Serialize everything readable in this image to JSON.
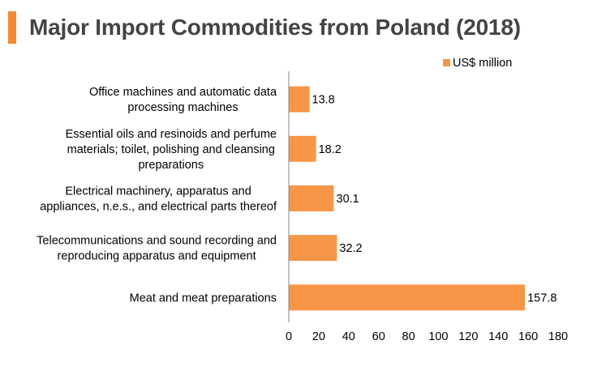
{
  "chart_data": {
    "type": "bar",
    "orientation": "horizontal",
    "title": "Major Import Commodities from Poland (2018)",
    "categories": [
      [
        "Office machines and automatic data",
        "processing machines"
      ],
      [
        "Essential oils and resinoids and perfume",
        "materials; toilet, polishing and cleansing",
        "preparations"
      ],
      [
        "Electrical machinery, apparatus and",
        "appliances, n.e.s., and electrical parts thereof"
      ],
      [
        "Telecommunications and sound recording and",
        "reproducing apparatus and equipment"
      ],
      [
        "Meat and meat preparations"
      ]
    ],
    "series": [
      {
        "name": "US$ million",
        "values": [
          13.8,
          18.2,
          30.1,
          32.2,
          157.8
        ],
        "labels": [
          "13.8",
          "18.2",
          "30.1",
          "32.2",
          "157.8"
        ]
      }
    ],
    "xlim": [
      0,
      180
    ],
    "xticks": [
      "0",
      "20",
      "40",
      "60",
      "80",
      "100",
      "120",
      "140",
      "160",
      "180"
    ],
    "xlabel": "",
    "ylabel": "",
    "grid": false,
    "legend_position": "top-right",
    "bar_color": "#f79646",
    "accent_color": "#f28a34"
  }
}
